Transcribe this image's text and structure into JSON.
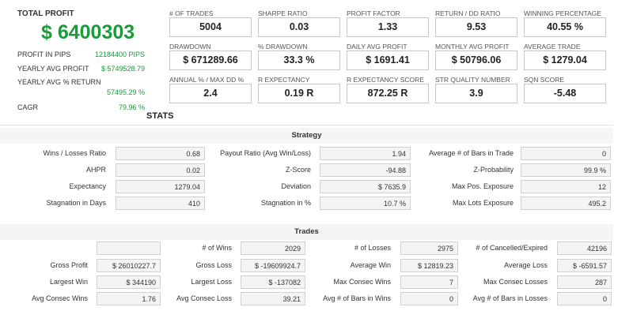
{
  "summary": {
    "total_profit_label": "TOTAL PROFIT",
    "total_profit_value": "$ 6400303",
    "rows": [
      {
        "label": "PROFIT IN PIPS",
        "value": "12184400 PIPS"
      },
      {
        "label": "YEARLY AVG PROFIT",
        "value": "$ 5749528.79"
      },
      {
        "label": "YEARLY AVG % RETURN",
        "value": "57495.29 %"
      },
      {
        "label": "CAGR",
        "value": "79.96 %"
      }
    ]
  },
  "metrics": [
    {
      "label": "# OF TRADES",
      "value": "5004"
    },
    {
      "label": "SHARPE RATIO",
      "value": "0.03"
    },
    {
      "label": "PROFIT FACTOR",
      "value": "1.33"
    },
    {
      "label": "RETURN / DD RATIO",
      "value": "9.53"
    },
    {
      "label": "WINNING PERCENTAGE",
      "value": "40.55 %"
    },
    {
      "label": "DRAWDOWN",
      "value": "$ 671289.66"
    },
    {
      "label": "% DRAWDOWN",
      "value": "33.3 %"
    },
    {
      "label": "DAILY AVG PROFIT",
      "value": "$ 1691.41"
    },
    {
      "label": "MONTHLY AVG PROFIT",
      "value": "$ 50796.06"
    },
    {
      "label": "AVERAGE TRADE",
      "value": "$ 1279.04"
    },
    {
      "label": "ANNUAL % / MAX DD %",
      "value": "2.4"
    },
    {
      "label": "R EXPECTANCY",
      "value": "0.19 R"
    },
    {
      "label": "R EXPECTANCY SCORE",
      "value": "872.25 R"
    },
    {
      "label": "STR QUALITY NUMBER",
      "value": "3.9"
    },
    {
      "label": "SQN SCORE",
      "value": "-5.48"
    }
  ],
  "stats_title": "STATS",
  "strategy": {
    "title": "Strategy",
    "rows": [
      [
        {
          "label": "Wins / Losses Ratio",
          "value": "0.68"
        },
        {
          "label": "Payout Ratio (Avg Win/Loss)",
          "value": "1.94"
        },
        {
          "label": "Average # of Bars in Trade",
          "value": "0"
        }
      ],
      [
        {
          "label": "AHPR",
          "value": "0.02"
        },
        {
          "label": "Z-Score",
          "value": "-94.88"
        },
        {
          "label": "Z-Probability",
          "value": "99.9 %"
        }
      ],
      [
        {
          "label": "Expectancy",
          "value": "1279.04"
        },
        {
          "label": "Deviation",
          "value": "$ 7635.9"
        },
        {
          "label": "Max Pos. Exposure",
          "value": "12"
        }
      ],
      [
        {
          "label": "Stagnation in Days",
          "value": "410"
        },
        {
          "label": "Stagnation in %",
          "value": "10.7 %"
        },
        {
          "label": "Max Lots Exposure",
          "value": "495.2"
        }
      ]
    ]
  },
  "trades": {
    "title": "Trades",
    "rows": [
      [
        {
          "label": "",
          "value": ""
        },
        {
          "label": "# of Wins",
          "value": "2029"
        },
        {
          "label": "# of Losses",
          "value": "2975"
        },
        {
          "label": "# of Cancelled/Expired",
          "value": "42196"
        }
      ],
      [
        {
          "label": "Gross Profit",
          "value": "$ 26010227.7"
        },
        {
          "label": "Gross Loss",
          "value": "$ -19609924.7"
        },
        {
          "label": "Average Win",
          "value": "$ 12819.23"
        },
        {
          "label": "Average Loss",
          "value": "$ -6591.57"
        }
      ],
      [
        {
          "label": "Largest Win",
          "value": "$ 344190"
        },
        {
          "label": "Largest Loss",
          "value": "$ -137082"
        },
        {
          "label": "Max Consec Wins",
          "value": "7"
        },
        {
          "label": "Max Consec Losses",
          "value": "287"
        }
      ],
      [
        {
          "label": "Avg Consec Wins",
          "value": "1.76"
        },
        {
          "label": "Avg Consec Loss",
          "value": "39.21"
        },
        {
          "label": "Avg # of Bars in Wins",
          "value": "0"
        },
        {
          "label": "Avg # of Bars in Losses",
          "value": "0"
        }
      ]
    ]
  },
  "colors": {
    "profit_green": "#1a9a3a"
  }
}
